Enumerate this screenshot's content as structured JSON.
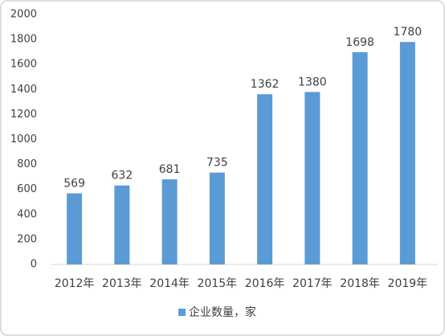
{
  "chart_data": {
    "type": "bar",
    "categories": [
      "2012年",
      "2013年",
      "2014年",
      "2015年",
      "2016年",
      "2017年",
      "2018年",
      "2019年"
    ],
    "series": [
      {
        "name": "企业数量，家",
        "color": "#5b9bd5",
        "values": [
          569,
          632,
          681,
          735,
          1362,
          1380,
          1698,
          1780
        ]
      }
    ],
    "ylim": [
      0,
      2000
    ],
    "yticks": [
      0,
      200,
      400,
      600,
      800,
      1000,
      1200,
      1400,
      1600,
      1800,
      2000
    ],
    "grid": false,
    "legend": "bottom"
  }
}
